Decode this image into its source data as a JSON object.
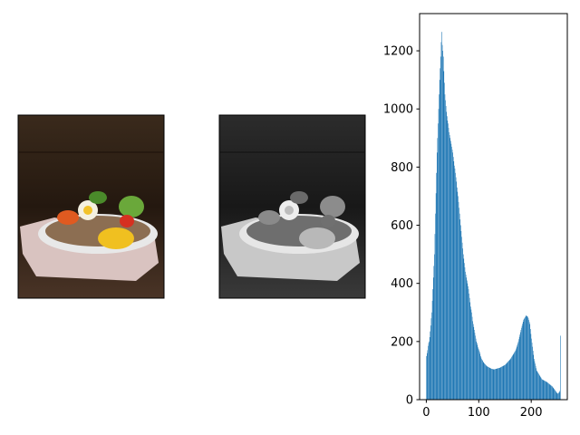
{
  "chart_data": {
    "type": "histogram",
    "bins": [
      0,
      1,
      2,
      3,
      4,
      5,
      6,
      7,
      8,
      9,
      10,
      11,
      12,
      13,
      14,
      15,
      16,
      17,
      18,
      19,
      20,
      21,
      22,
      23,
      24,
      25,
      26,
      27,
      28,
      29,
      30,
      31,
      32,
      33,
      34,
      35,
      36,
      37,
      38,
      39,
      40,
      41,
      42,
      43,
      44,
      45,
      46,
      47,
      48,
      49,
      50,
      51,
      52,
      53,
      54,
      55,
      56,
      57,
      58,
      59,
      60,
      61,
      62,
      63,
      64,
      65,
      66,
      67,
      68,
      69,
      70,
      71,
      72,
      73,
      74,
      75,
      76,
      77,
      78,
      79,
      80,
      81,
      82,
      83,
      84,
      85,
      86,
      87,
      88,
      89,
      90,
      91,
      92,
      93,
      94,
      95,
      96,
      97,
      98,
      99,
      100,
      101,
      102,
      103,
      104,
      105,
      106,
      107,
      108,
      109,
      110,
      111,
      112,
      113,
      114,
      115,
      116,
      117,
      118,
      119,
      120,
      121,
      122,
      123,
      124,
      125,
      126,
      127,
      128,
      129,
      130,
      131,
      132,
      133,
      134,
      135,
      136,
      137,
      138,
      139,
      140,
      141,
      142,
      143,
      144,
      145,
      146,
      147,
      148,
      149,
      150,
      151,
      152,
      153,
      154,
      155,
      156,
      157,
      158,
      159,
      160,
      161,
      162,
      163,
      164,
      165,
      166,
      167,
      168,
      169,
      170,
      171,
      172,
      173,
      174,
      175,
      176,
      177,
      178,
      179,
      180,
      181,
      182,
      183,
      184,
      185,
      186,
      187,
      188,
      189,
      190,
      191,
      192,
      193,
      194,
      195,
      196,
      197,
      198,
      199,
      200,
      201,
      202,
      203,
      204,
      205,
      206,
      207,
      208,
      209,
      210,
      211,
      212,
      213,
      214,
      215,
      216,
      217,
      218,
      219,
      220,
      221,
      222,
      223,
      224,
      225,
      226,
      227,
      228,
      229,
      230,
      231,
      232,
      233,
      234,
      235,
      236,
      237,
      238,
      239,
      240,
      241,
      242,
      243,
      244,
      245,
      246,
      247,
      248,
      249,
      250,
      251,
      252,
      253,
      254,
      255,
      256
    ],
    "values": [
      150,
      160,
      170,
      185,
      195,
      200,
      215,
      235,
      255,
      280,
      300,
      340,
      380,
      420,
      460,
      500,
      570,
      640,
      710,
      780,
      850,
      900,
      950,
      1000,
      1050,
      1100,
      1140,
      1180,
      1230,
      1265,
      1220,
      1200,
      1180,
      1130,
      1090,
      1050,
      1030,
      1010,
      990,
      975,
      960,
      950,
      935,
      920,
      910,
      900,
      890,
      880,
      870,
      860,
      850,
      835,
      820,
      805,
      795,
      780,
      765,
      750,
      730,
      715,
      700,
      680,
      660,
      640,
      620,
      600,
      580,
      560,
      540,
      520,
      500,
      485,
      470,
      455,
      440,
      430,
      420,
      410,
      400,
      390,
      380,
      365,
      350,
      335,
      320,
      310,
      300,
      285,
      270,
      260,
      250,
      240,
      230,
      220,
      210,
      200,
      195,
      188,
      180,
      175,
      170,
      165,
      158,
      150,
      145,
      140,
      137,
      134,
      130,
      128,
      125,
      123,
      121,
      119,
      117,
      115,
      114,
      113,
      112,
      111,
      110,
      109,
      108,
      107,
      106,
      106,
      105,
      105,
      104,
      104,
      105,
      105,
      106,
      106,
      107,
      107,
      108,
      108,
      109,
      109,
      110,
      111,
      112,
      113,
      114,
      115,
      116,
      117,
      118,
      119,
      120,
      122,
      124,
      126,
      128,
      130,
      132,
      134,
      136,
      138,
      140,
      143,
      146,
      149,
      152,
      155,
      158,
      161,
      164,
      167,
      170,
      176,
      182,
      188,
      194,
      200,
      208,
      216,
      224,
      232,
      240,
      247,
      254,
      261,
      268,
      275,
      278,
      281,
      284,
      287,
      290,
      288,
      286,
      285,
      280,
      274,
      267,
      260,
      243,
      226,
      210,
      196,
      182,
      168,
      154,
      140,
      132,
      124,
      116,
      108,
      100,
      97,
      94,
      91,
      88,
      85,
      82,
      79,
      76,
      73,
      70,
      69,
      68,
      67,
      66,
      65,
      64,
      63,
      62,
      61,
      60,
      58,
      57,
      55,
      54,
      52,
      51,
      49,
      48,
      46,
      45,
      42,
      40,
      37,
      35,
      32,
      30,
      27,
      25,
      22,
      20,
      22,
      24,
      26,
      30,
      220
    ],
    "color": "#1f77b4",
    "xlim": [
      -12.8,
      268.8
    ],
    "ylim": [
      0,
      1328
    ],
    "xticks": [
      0,
      100,
      200
    ],
    "yticks": [
      0,
      200,
      400,
      600,
      800,
      1000,
      1200
    ]
  }
}
